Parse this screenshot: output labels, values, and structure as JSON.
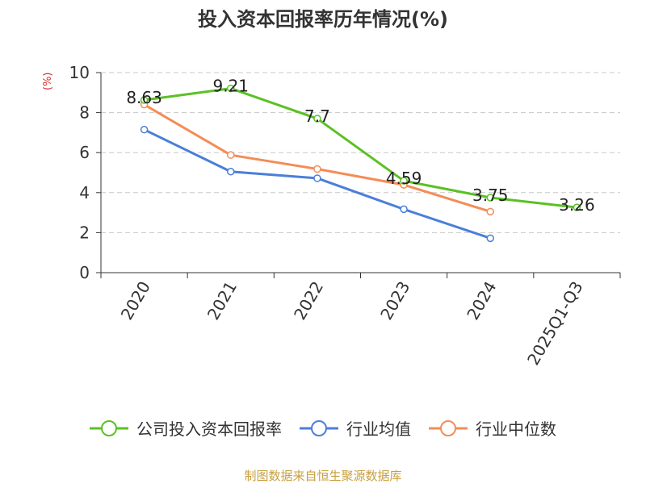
{
  "chart_data": {
    "type": "line",
    "title": "投入资本回报率历年情况(%)",
    "ylabel": "(%)",
    "xlabel": "",
    "categories": [
      "2020",
      "2021",
      "2022",
      "2023",
      "2024",
      "2025Q1-Q3"
    ],
    "ylim": [
      0,
      10
    ],
    "yticks": [
      0,
      2,
      4,
      6,
      8,
      10
    ],
    "grid": true,
    "legend_position": "bottom",
    "series": [
      {
        "name": "公司投入资本回报率",
        "color": "#5ac125",
        "values": [
          8.63,
          9.21,
          7.7,
          4.59,
          3.75,
          3.26
        ],
        "labels": [
          "8.63",
          "9.21",
          "7.7",
          "4.59",
          "3.75",
          "3.26"
        ]
      },
      {
        "name": "行业均值",
        "color": "#4a7fd9",
        "values": [
          7.15,
          5.05,
          4.72,
          3.17,
          1.72,
          null
        ]
      },
      {
        "name": "行业中位数",
        "color": "#f58c56",
        "values": [
          8.4,
          5.88,
          5.18,
          4.39,
          3.05,
          null
        ]
      }
    ],
    "source": "制图数据来自恒生聚源数据库"
  }
}
